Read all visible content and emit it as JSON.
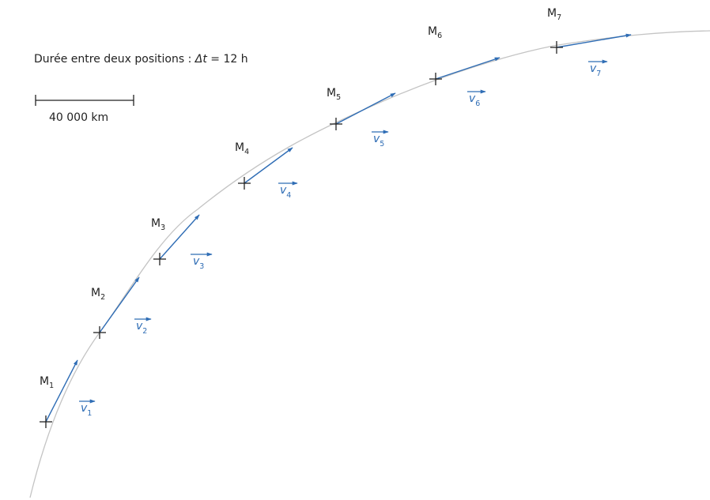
{
  "info": {
    "prefix": "Durée entre deux positions : ",
    "delta_symbol": "Δt",
    "suffix": " = 12 h"
  },
  "scale_bar": {
    "label": "40 000 km"
  },
  "colors": {
    "trajectory": "#c4c4c4",
    "vector": "#2f6db5",
    "ink": "#222222"
  },
  "positions": [
    {
      "letter": "M",
      "index": "1",
      "vector_letter": "v",
      "vector_index": "1"
    },
    {
      "letter": "M",
      "index": "2",
      "vector_letter": "v",
      "vector_index": "2"
    },
    {
      "letter": "M",
      "index": "3",
      "vector_letter": "v",
      "vector_index": "3"
    },
    {
      "letter": "M",
      "index": "4",
      "vector_letter": "v",
      "vector_index": "4"
    },
    {
      "letter": "M",
      "index": "5",
      "vector_letter": "v",
      "vector_index": "5"
    },
    {
      "letter": "M",
      "index": "6",
      "vector_letter": "v",
      "vector_index": "6"
    },
    {
      "letter": "M",
      "index": "7",
      "vector_letter": "v",
      "vector_index": "7"
    }
  ]
}
